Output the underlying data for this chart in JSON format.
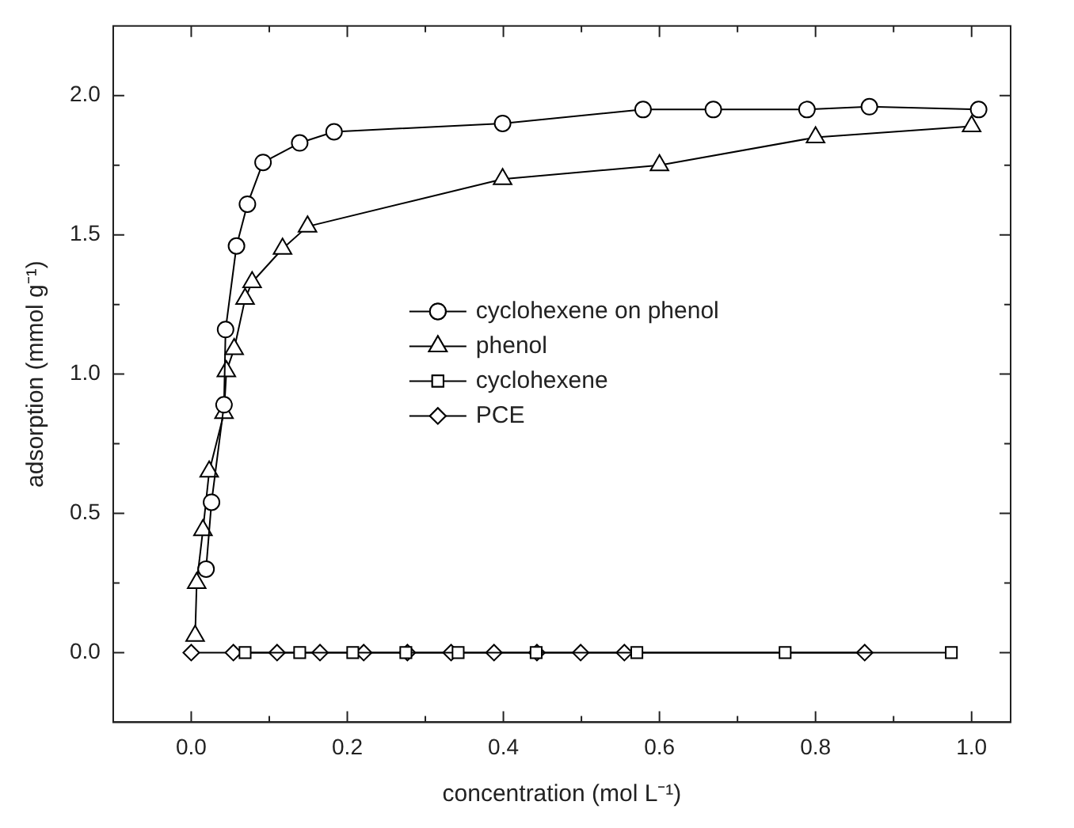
{
  "chart_data": {
    "type": "line",
    "xlabel": "concentration (mol L⁻¹)",
    "ylabel": "adsorption (mmol g⁻¹)",
    "xlim": [
      -0.1,
      1.05
    ],
    "ylim": [
      -0.25,
      2.25
    ],
    "xticks": [
      {
        "value": 0,
        "label": "0.0"
      },
      {
        "value": 0.1,
        "label": null
      },
      {
        "value": 0.2,
        "label": "0.2"
      },
      {
        "value": 0.3,
        "label": null
      },
      {
        "value": 0.4,
        "label": "0.4"
      },
      {
        "value": 0.5,
        "label": null
      },
      {
        "value": 0.6,
        "label": "0.6"
      },
      {
        "value": 0.7,
        "label": null
      },
      {
        "value": 0.8,
        "label": "0.8"
      },
      {
        "value": 0.9,
        "label": null
      },
      {
        "value": 1,
        "label": "1.0"
      }
    ],
    "yticks": [
      {
        "value": 0,
        "label": "0.0"
      },
      {
        "value": 0.25,
        "label": null
      },
      {
        "value": 0.5,
        "label": "0.5"
      },
      {
        "value": 0.75,
        "label": null
      },
      {
        "value": 1,
        "label": "1.0"
      },
      {
        "value": 1.25,
        "label": null
      },
      {
        "value": 1.5,
        "label": "1.5"
      },
      {
        "value": 1.75,
        "label": null
      },
      {
        "value": 2,
        "label": "2.0"
      }
    ],
    "grid": false,
    "legend": "center",
    "line_style": "solid",
    "series": [
      {
        "name": "cyclohexene on phenol",
        "color": "#000000",
        "marker": "circle",
        "x": [
          0.019,
          0.026,
          0.042,
          0.044,
          0.058,
          0.072,
          0.092,
          0.139,
          0.183,
          0.399,
          0.579,
          0.669,
          0.789,
          0.869,
          1.009
        ],
        "values": [
          0.3,
          0.54,
          0.89,
          1.16,
          1.46,
          1.61,
          1.76,
          1.83,
          1.87,
          1.9,
          1.95,
          1.95,
          1.95,
          1.96,
          1.95
        ]
      },
      {
        "name": "phenol",
        "color": "#000000",
        "marker": "triangle",
        "x": [
          0.005,
          0.007,
          0.015,
          0.023,
          0.042,
          0.045,
          0.055,
          0.069,
          0.078,
          0.117,
          0.149,
          0.399,
          0.6,
          0.8,
          1.0
        ],
        "values": [
          0.06,
          0.25,
          0.44,
          0.65,
          0.86,
          1.01,
          1.09,
          1.27,
          1.33,
          1.45,
          1.53,
          1.7,
          1.75,
          1.85,
          1.89
        ]
      },
      {
        "name": "cyclohexene",
        "color": "#000000",
        "marker": "square",
        "x": [
          0.069,
          0.139,
          0.207,
          0.275,
          0.342,
          0.442,
          0.571,
          0.761,
          0.974
        ],
        "values": [
          0,
          0,
          0,
          0,
          0,
          0,
          0,
          0,
          0
        ]
      },
      {
        "name": "PCE",
        "color": "#000000",
        "marker": "diamond",
        "x": [
          0,
          0.054,
          0.11,
          0.165,
          0.221,
          0.277,
          0.333,
          0.388,
          0.443,
          0.499,
          0.555,
          0.863
        ],
        "values": [
          0,
          0,
          0,
          0,
          0,
          0,
          0,
          0,
          0,
          0,
          0,
          0
        ]
      }
    ]
  }
}
